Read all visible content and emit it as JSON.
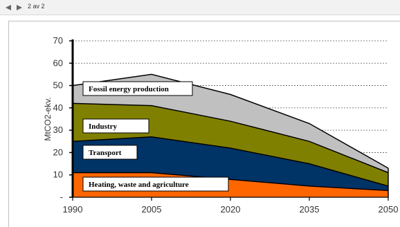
{
  "viewer": {
    "page_indicator": "2 av 2",
    "prev_icon": "triangle-left-icon",
    "next_icon": "triangle-right-icon"
  },
  "chart_data": {
    "type": "area",
    "stacked": true,
    "x": [
      1990,
      2005,
      2020,
      2035,
      2050
    ],
    "x_tick_labels": [
      "1990",
      "2005",
      "2020",
      "2035",
      "2050"
    ],
    "ylabel": "MtCO2-ekv.",
    "ylim": [
      0,
      70
    ],
    "y_tick_labels": [
      "-",
      "10",
      "20",
      "30",
      "40",
      "50",
      "60",
      "70"
    ],
    "grid": "horizontal dashed",
    "series": [
      {
        "name": "Heating, waste and agriculture",
        "values": [
          11,
          11,
          8,
          5,
          3
        ],
        "color": "#ff6600"
      },
      {
        "name": "Transport",
        "values": [
          14,
          16,
          14,
          10,
          2
        ],
        "color": "#003366"
      },
      {
        "name": "Industry",
        "values": [
          17,
          14,
          12,
          10,
          6
        ],
        "color": "#808000"
      },
      {
        "name": "Fossil energy production",
        "values": [
          8,
          14,
          12,
          8,
          2
        ],
        "color": "#c0c0c0"
      }
    ]
  }
}
